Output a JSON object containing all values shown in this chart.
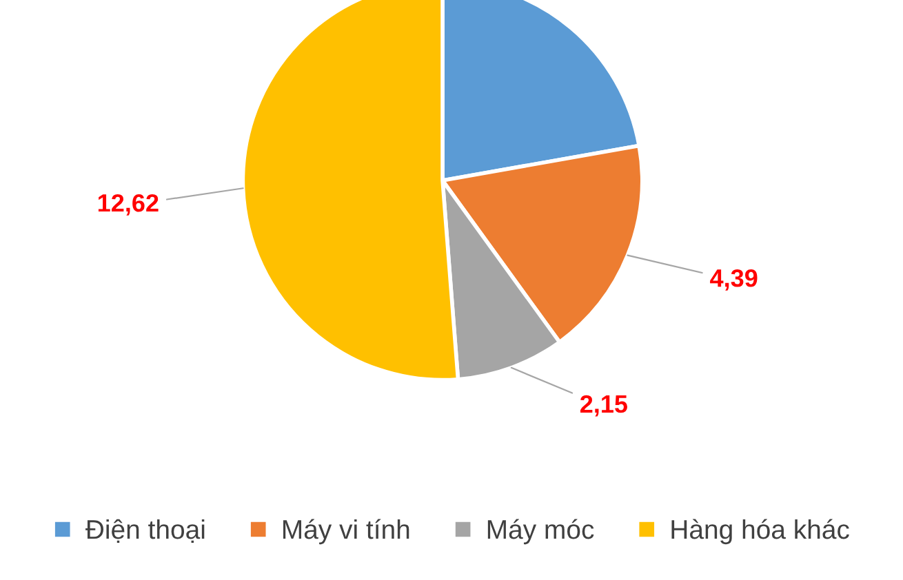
{
  "chart_data": {
    "type": "pie",
    "categories": [
      "Điện thoại",
      "Máy vi tính",
      "Máy móc",
      "Hàng hóa khác"
    ],
    "values": [
      5.47,
      4.39,
      2.15,
      12.62
    ],
    "value_labels": [
      null,
      "4,39",
      "2,15",
      "12,62"
    ],
    "colors": [
      "#5b9bd5",
      "#ed7d31",
      "#a5a5a5",
      "#ffc000"
    ],
    "legend": "bottom"
  }
}
